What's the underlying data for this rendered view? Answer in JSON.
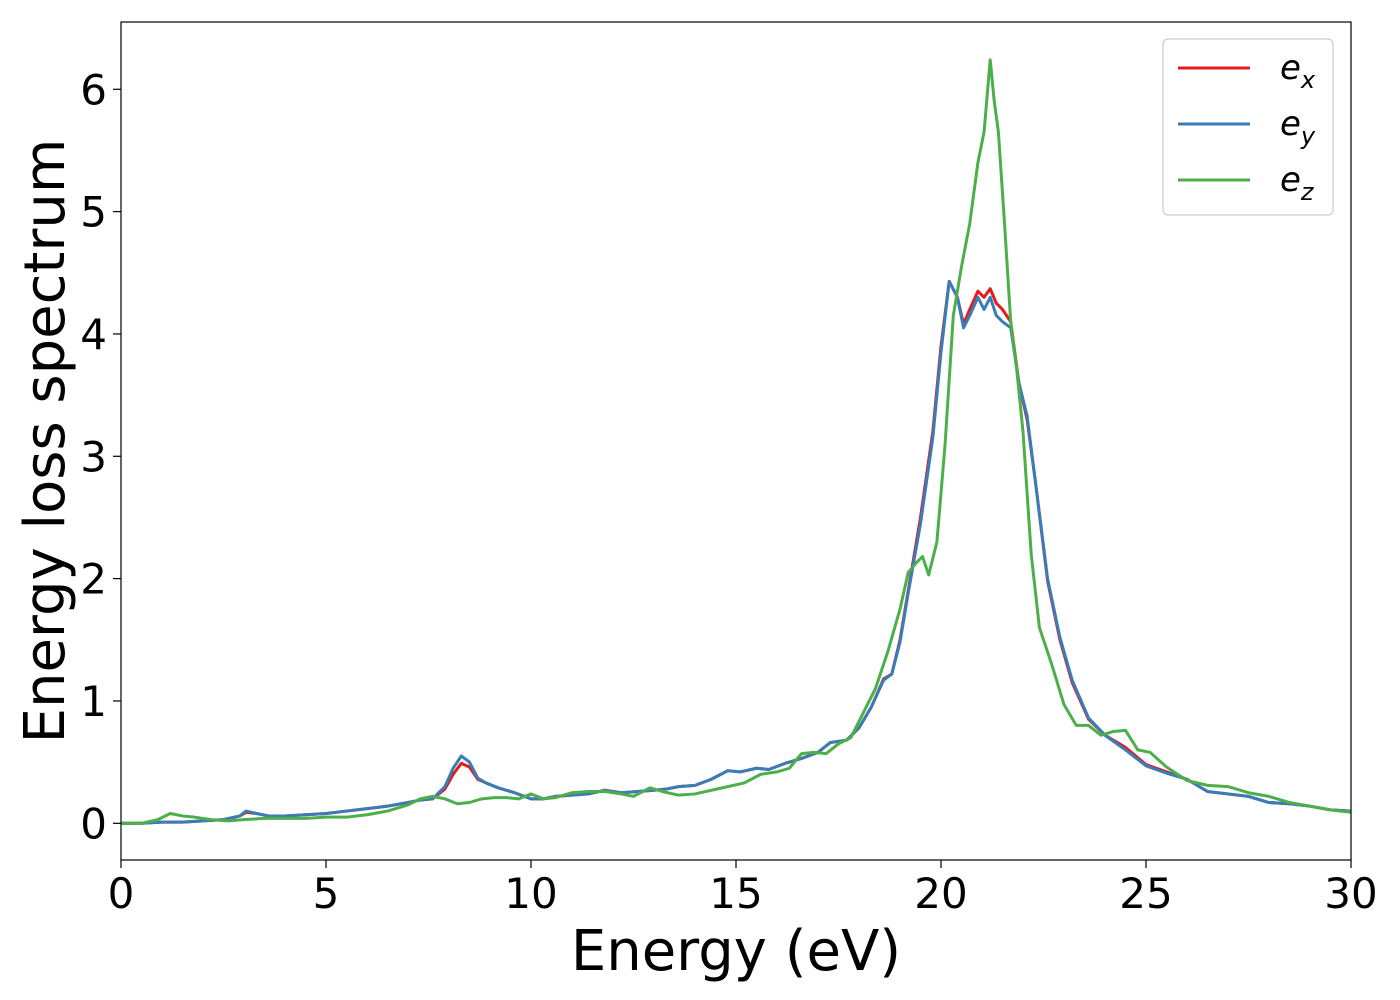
{
  "chart_data": {
    "type": "line",
    "title": "",
    "xlabel": "Energy (eV)",
    "ylabel": "Energy loss spectrum",
    "xlim": [
      0,
      30
    ],
    "ylim": [
      -0.3,
      6.55
    ],
    "xticks": [
      0,
      5,
      10,
      15,
      20,
      25,
      30
    ],
    "yticks": [
      0,
      1,
      2,
      3,
      4,
      5,
      6
    ],
    "grid": false,
    "legend_position": "top-right",
    "series": [
      {
        "name": "e_x",
        "legend_base": "e",
        "legend_sub": "x",
        "color": "#e41a1c",
        "x": [
          0,
          0.5,
          1,
          1.5,
          2,
          2.5,
          2.9,
          3.05,
          3.3,
          3.6,
          4,
          4.5,
          5,
          5.5,
          6,
          6.5,
          7,
          7.3,
          7.6,
          7.9,
          8.1,
          8.3,
          8.5,
          8.7,
          8.9,
          9.2,
          9.6,
          10,
          10.3,
          10.6,
          11,
          11.4,
          11.8,
          12.2,
          12.6,
          13,
          13.3,
          13.6,
          14,
          14.4,
          14.8,
          15.1,
          15.5,
          15.8,
          16.2,
          16.6,
          17,
          17.3,
          17.7,
          18,
          18.3,
          18.6,
          18.8,
          19,
          19.2,
          19.5,
          19.8,
          20,
          20.2,
          20.4,
          20.55,
          20.7,
          20.9,
          21.05,
          21.2,
          21.35,
          21.5,
          21.7,
          21.9,
          22.1,
          22.3,
          22.6,
          22.9,
          23.2,
          23.6,
          24,
          24.5,
          25,
          25.5,
          26,
          26.5,
          27,
          27.5,
          28,
          28.5,
          29,
          29.5,
          30
        ],
        "y": [
          0,
          0,
          0.01,
          0.01,
          0.02,
          0.03,
          0.06,
          0.09,
          0.08,
          0.06,
          0.06,
          0.07,
          0.08,
          0.1,
          0.12,
          0.14,
          0.17,
          0.19,
          0.2,
          0.28,
          0.4,
          0.49,
          0.46,
          0.36,
          0.33,
          0.29,
          0.25,
          0.2,
          0.2,
          0.22,
          0.23,
          0.24,
          0.27,
          0.25,
          0.26,
          0.27,
          0.28,
          0.3,
          0.31,
          0.36,
          0.43,
          0.42,
          0.45,
          0.44,
          0.49,
          0.53,
          0.58,
          0.66,
          0.68,
          0.78,
          0.95,
          1.18,
          1.22,
          1.5,
          1.9,
          2.5,
          3.2,
          3.9,
          4.43,
          4.3,
          4.08,
          4.2,
          4.35,
          4.3,
          4.37,
          4.25,
          4.2,
          4.1,
          3.6,
          3.3,
          2.8,
          1.98,
          1.5,
          1.15,
          0.85,
          0.72,
          0.62,
          0.48,
          0.42,
          0.36,
          0.26,
          0.24,
          0.22,
          0.17,
          0.16,
          0.14,
          0.11,
          0.1
        ]
      },
      {
        "name": "e_y",
        "legend_base": "e",
        "legend_sub": "y",
        "color": "#377eb8",
        "x": [
          0,
          0.5,
          1,
          1.5,
          2,
          2.5,
          2.9,
          3.05,
          3.3,
          3.6,
          4,
          4.5,
          5,
          5.5,
          6,
          6.5,
          7,
          7.3,
          7.6,
          7.9,
          8.1,
          8.3,
          8.5,
          8.7,
          8.9,
          9.2,
          9.6,
          10,
          10.3,
          10.6,
          11,
          11.4,
          11.8,
          12.2,
          12.6,
          13,
          13.3,
          13.6,
          14,
          14.4,
          14.8,
          15.1,
          15.5,
          15.8,
          16.2,
          16.6,
          17,
          17.3,
          17.7,
          18,
          18.3,
          18.6,
          18.8,
          19,
          19.2,
          19.5,
          19.8,
          20,
          20.2,
          20.4,
          20.55,
          20.7,
          20.9,
          21.05,
          21.2,
          21.35,
          21.5,
          21.7,
          21.9,
          22.1,
          22.3,
          22.6,
          22.9,
          23.2,
          23.6,
          24,
          24.5,
          25,
          25.5,
          26,
          26.5,
          27,
          27.5,
          28,
          28.5,
          29,
          29.5,
          30
        ],
        "y": [
          0,
          0,
          0.01,
          0.01,
          0.02,
          0.03,
          0.06,
          0.1,
          0.08,
          0.06,
          0.06,
          0.07,
          0.08,
          0.1,
          0.12,
          0.14,
          0.17,
          0.19,
          0.2,
          0.3,
          0.45,
          0.55,
          0.5,
          0.37,
          0.33,
          0.29,
          0.25,
          0.2,
          0.2,
          0.22,
          0.23,
          0.24,
          0.27,
          0.25,
          0.26,
          0.27,
          0.28,
          0.3,
          0.31,
          0.36,
          0.43,
          0.42,
          0.45,
          0.44,
          0.49,
          0.53,
          0.58,
          0.66,
          0.68,
          0.78,
          0.95,
          1.17,
          1.22,
          1.48,
          1.88,
          2.45,
          3.15,
          3.85,
          4.43,
          4.3,
          4.05,
          4.15,
          4.3,
          4.2,
          4.3,
          4.15,
          4.1,
          4.05,
          3.6,
          3.33,
          2.8,
          2,
          1.52,
          1.17,
          0.86,
          0.72,
          0.6,
          0.47,
          0.41,
          0.36,
          0.26,
          0.24,
          0.22,
          0.17,
          0.16,
          0.14,
          0.11,
          0.1
        ]
      },
      {
        "name": "e_z",
        "legend_base": "e",
        "legend_sub": "z",
        "color": "#4daf4a",
        "x": [
          0,
          0.5,
          0.9,
          1.2,
          1.5,
          1.8,
          2.2,
          2.6,
          3,
          3.5,
          4,
          4.5,
          5,
          5.5,
          6,
          6.5,
          7,
          7.3,
          7.6,
          7.9,
          8.2,
          8.5,
          8.8,
          9.1,
          9.4,
          9.7,
          10,
          10.3,
          10.6,
          11,
          11.4,
          11.8,
          12.2,
          12.5,
          12.9,
          13.2,
          13.6,
          14,
          14.4,
          14.8,
          15.2,
          15.6,
          16,
          16.3,
          16.6,
          16.9,
          17.2,
          17.5,
          17.8,
          18.1,
          18.4,
          18.7,
          19,
          19.2,
          19.4,
          19.55,
          19.7,
          19.9,
          20.1,
          20.3,
          20.5,
          20.7,
          20.9,
          21.05,
          21.2,
          21.3,
          21.4,
          21.55,
          21.7,
          21.85,
          22,
          22.2,
          22.4,
          22.7,
          23,
          23.3,
          23.6,
          23.9,
          24.2,
          24.5,
          24.8,
          25.1,
          25.5,
          26,
          26.5,
          27,
          27.5,
          28,
          28.5,
          29,
          29.5,
          30
        ],
        "y": [
          0,
          0,
          0.03,
          0.08,
          0.06,
          0.05,
          0.03,
          0.02,
          0.03,
          0.04,
          0.04,
          0.04,
          0.05,
          0.05,
          0.07,
          0.1,
          0.15,
          0.2,
          0.22,
          0.2,
          0.16,
          0.17,
          0.2,
          0.21,
          0.21,
          0.2,
          0.24,
          0.2,
          0.21,
          0.25,
          0.26,
          0.26,
          0.24,
          0.22,
          0.29,
          0.26,
          0.23,
          0.24,
          0.27,
          0.3,
          0.33,
          0.4,
          0.42,
          0.45,
          0.57,
          0.58,
          0.57,
          0.65,
          0.7,
          0.9,
          1.1,
          1.4,
          1.75,
          2.05,
          2.13,
          2.18,
          2.03,
          2.3,
          3.1,
          4.15,
          4.55,
          4.9,
          5.4,
          5.65,
          6.24,
          5.9,
          5.65,
          4.9,
          4.1,
          3.7,
          3.2,
          2.2,
          1.6,
          1.3,
          0.97,
          0.8,
          0.8,
          0.72,
          0.75,
          0.76,
          0.6,
          0.58,
          0.46,
          0.35,
          0.31,
          0.3,
          0.25,
          0.22,
          0.17,
          0.14,
          0.11,
          0.09
        ]
      }
    ]
  }
}
